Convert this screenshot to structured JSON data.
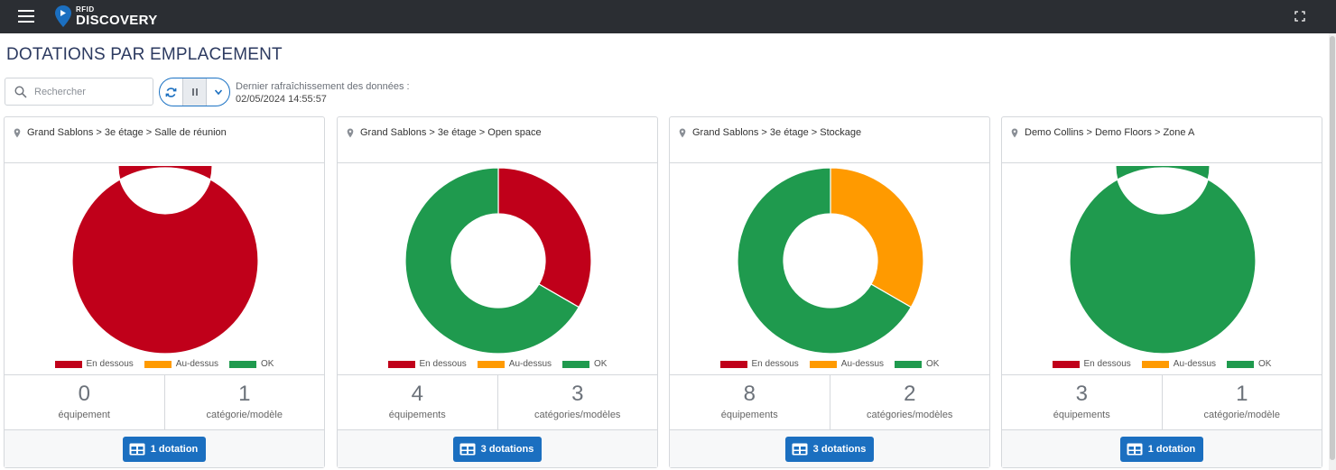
{
  "header": {
    "logo_small": "RFID",
    "logo_big": "DISCOVERY"
  },
  "page": {
    "title": "DOTATIONS PAR EMPLACEMENT"
  },
  "toolbar": {
    "search_placeholder": "Rechercher",
    "refresh_label": "Dernier rafraîchissement des données :",
    "refresh_date": "02/05/2024 14:55:57"
  },
  "legend": [
    {
      "label": "En dessous",
      "color": "#c0001a"
    },
    {
      "label": "Au-dessus",
      "color": "#ff9a00"
    },
    {
      "label": "OK",
      "color": "#1f9a4e"
    }
  ],
  "cards": [
    {
      "location": "Grand Sablons > 3e étage > Salle de réunion",
      "chart_data": {
        "type": "pie",
        "categories": [
          "En dessous",
          "Au-dessus",
          "OK"
        ],
        "values": [
          1,
          0,
          0
        ]
      },
      "equip_count": "0",
      "equip_label": "équipement",
      "cat_count": "1",
      "cat_label": "catégorie/modèle",
      "button_label": "1 dotation"
    },
    {
      "location": "Grand Sablons > 3e étage > Open space",
      "chart_data": {
        "type": "pie",
        "categories": [
          "En dessous",
          "Au-dessus",
          "OK"
        ],
        "values": [
          1,
          0,
          2
        ]
      },
      "equip_count": "4",
      "equip_label": "équipements",
      "cat_count": "3",
      "cat_label": "catégories/modèles",
      "button_label": "3 dotations"
    },
    {
      "location": "Grand Sablons > 3e étage > Stockage",
      "chart_data": {
        "type": "pie",
        "categories": [
          "En dessous",
          "Au-dessus",
          "OK"
        ],
        "values": [
          0,
          1,
          2
        ]
      },
      "equip_count": "8",
      "equip_label": "équipements",
      "cat_count": "2",
      "cat_label": "catégories/modèles",
      "button_label": "3 dotations"
    },
    {
      "location": "Demo Collins > Demo Floors > Zone A",
      "chart_data": {
        "type": "pie",
        "categories": [
          "En dessous",
          "Au-dessus",
          "OK"
        ],
        "values": [
          0,
          0,
          1
        ]
      },
      "equip_count": "3",
      "equip_label": "équipements",
      "cat_count": "1",
      "cat_label": "catégorie/modèle",
      "button_label": "1 dotation"
    }
  ]
}
